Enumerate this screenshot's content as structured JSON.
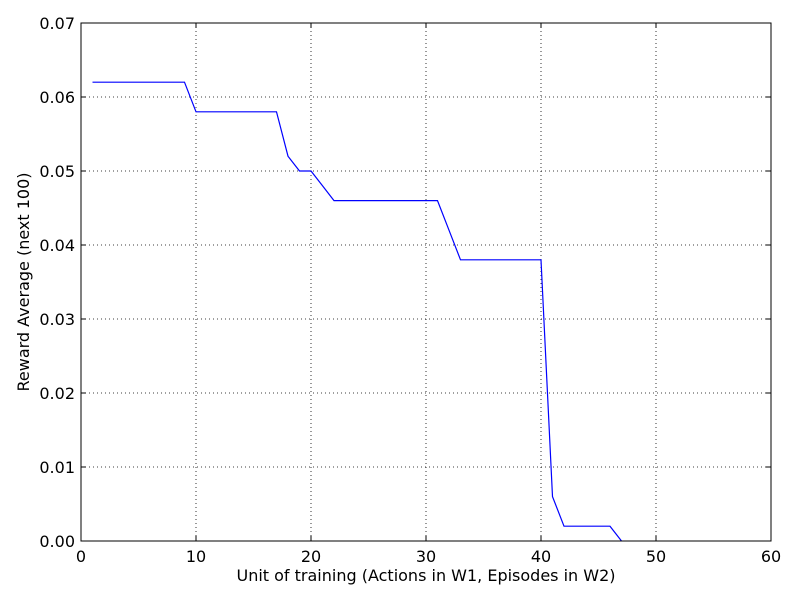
{
  "chart_data": {
    "type": "line",
    "title": "",
    "xlabel": "Unit of training (Actions in W1, Episodes in W2)",
    "ylabel": "Reward Average (next 100)",
    "xlim": [
      0,
      60
    ],
    "ylim": [
      0,
      0.07
    ],
    "grid": true,
    "x_ticks": [
      0,
      10,
      20,
      30,
      40,
      50,
      60
    ],
    "x_tick_labels": [
      "0",
      "10",
      "20",
      "30",
      "40",
      "50",
      "60"
    ],
    "y_ticks": [
      0,
      0.01,
      0.02,
      0.03,
      0.04,
      0.05,
      0.06,
      0.07
    ],
    "y_tick_labels": [
      "0.00",
      "0.01",
      "0.02",
      "0.03",
      "0.04",
      "0.05",
      "0.06",
      "0.07"
    ],
    "series": [
      {
        "color": "#0000ff",
        "x": [
          1,
          2,
          3,
          4,
          5,
          6,
          7,
          8,
          9,
          10,
          11,
          12,
          13,
          14,
          15,
          16,
          17,
          18,
          19,
          20,
          21,
          22,
          23,
          24,
          25,
          26,
          27,
          28,
          29,
          30,
          31,
          32,
          33,
          34,
          35,
          36,
          37,
          38,
          39,
          40,
          41,
          42,
          43,
          44,
          45,
          46,
          47
        ],
        "y": [
          0.062,
          0.062,
          0.062,
          0.062,
          0.062,
          0.062,
          0.062,
          0.062,
          0.062,
          0.058,
          0.058,
          0.058,
          0.058,
          0.058,
          0.058,
          0.058,
          0.058,
          0.052,
          0.05,
          0.05,
          0.048,
          0.046,
          0.046,
          0.046,
          0.046,
          0.046,
          0.046,
          0.046,
          0.046,
          0.046,
          0.046,
          0.042,
          0.038,
          0.038,
          0.038,
          0.038,
          0.038,
          0.038,
          0.038,
          0.038,
          0.006,
          0.002,
          0.002,
          0.002,
          0.002,
          0.002,
          0.0
        ]
      }
    ]
  }
}
